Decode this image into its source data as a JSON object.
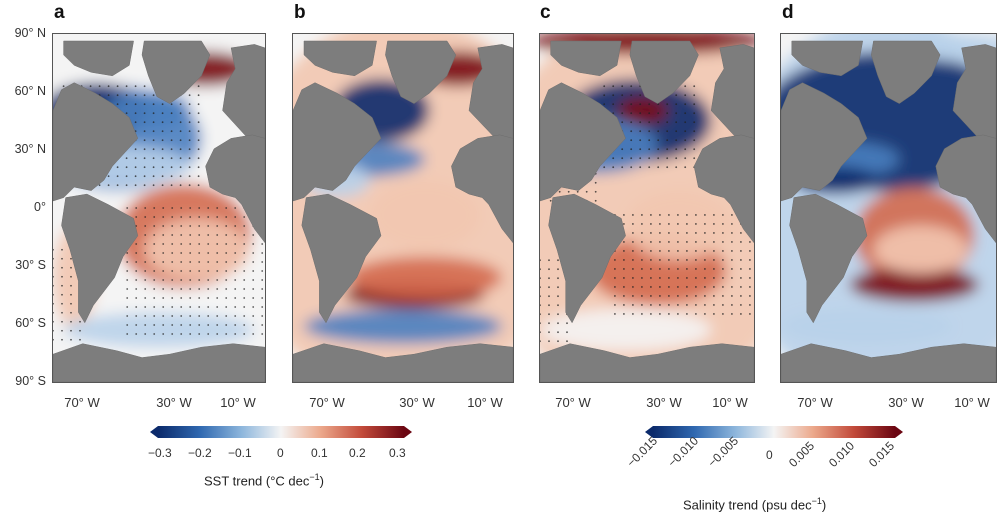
{
  "panels": [
    {
      "letter": "a",
      "variable": "SST",
      "colormap": "diverging-blue-red"
    },
    {
      "letter": "b",
      "variable": "SST",
      "colormap": "diverging-blue-red"
    },
    {
      "letter": "c",
      "variable": "Salinity",
      "colormap": "diverging-blue-red"
    },
    {
      "letter": "d",
      "variable": "Salinity",
      "colormap": "diverging-blue-red"
    }
  ],
  "lat_labels": [
    "90° N",
    "60° N",
    "30° N",
    "0°",
    "30° S",
    "60° S",
    "90° S"
  ],
  "lon_labels": [
    "70° W",
    "30° W",
    "10° W"
  ],
  "colorbars": [
    {
      "ticks": [
        "−0.3",
        "−0.2",
        "−0.1",
        "0",
        "0.1",
        "0.2",
        "0.3"
      ],
      "title_main": "SST trend (°C dec",
      "title_sup": "−1",
      "title_end": ")",
      "range": [
        -0.3,
        0.3
      ]
    },
    {
      "ticks": [
        "−0.015",
        "−0.010",
        "−0.005",
        "0",
        "0.005",
        "0.010",
        "0.015"
      ],
      "title_main": "Salinity trend (psu dec",
      "title_sup": "−1",
      "title_end": ")",
      "range": [
        -0.015,
        0.015
      ]
    }
  ],
  "colors": {
    "land": "#7d7d7d",
    "neg_strong": "#0b2a6b",
    "neg_mid": "#4a7fc0",
    "neg_weak": "#b9d2ea",
    "neutral": "#f4f4f4",
    "pos_weak": "#f2c7b0",
    "pos_mid": "#d46a4e",
    "pos_strong": "#7a0a14"
  }
}
